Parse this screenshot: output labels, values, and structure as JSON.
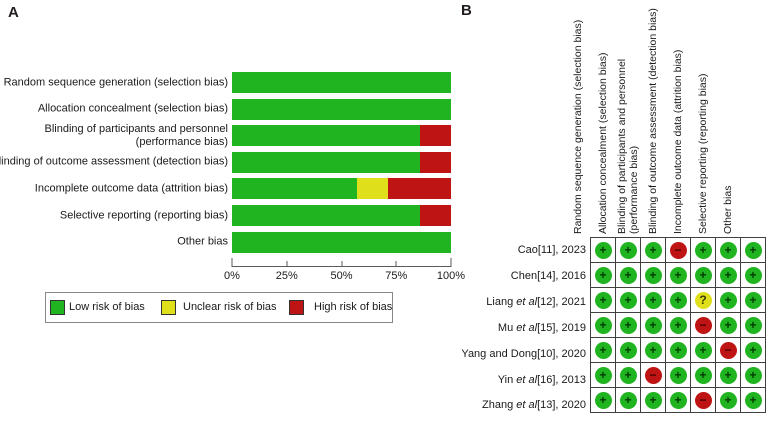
{
  "panel_a_label": "A",
  "panel_b_label": "B",
  "colors": {
    "low": "#21B421",
    "unclear": "#E0DF1C",
    "high": "#BE1414",
    "symbol": {
      "low": "#003B00",
      "unclear": "#3A3A00",
      "high": "#4A0000"
    }
  },
  "legend": {
    "items": [
      {
        "key": "low",
        "label": "Low risk of bias"
      },
      {
        "key": "unclear",
        "label": "Unclear risk of bias"
      },
      {
        "key": "high",
        "label": "High risk of bias"
      }
    ]
  },
  "chart_data": [
    {
      "id": "A",
      "type": "bar",
      "subtype": "horizontal_stacked_percent",
      "categories": [
        "Random sequence generation (selection bias)",
        "Allocation concealment (selection bias)",
        "Blinding of participants and personnel (performance bias)",
        "Blinding of outcome assessment (detection bias)",
        "Incomplete outcome data (attrition bias)",
        "Selective reporting (reporting bias)",
        "Other bias"
      ],
      "categories_lines": [
        [
          "Random sequence generation (selection bias)"
        ],
        [
          "Allocation concealment (selection bias)"
        ],
        [
          "Blinding of participants and personnel",
          "(performance bias)"
        ],
        [
          "Blinding of outcome assessment (detection bias)"
        ],
        [
          "Incomplete outcome data (attrition bias)"
        ],
        [
          "Selective reporting (reporting bias)"
        ],
        [
          "Other bias"
        ]
      ],
      "series": [
        {
          "name": "Low risk of bias",
          "key": "low",
          "values": [
            100,
            100,
            85.7,
            85.7,
            57.1,
            85.7,
            100
          ]
        },
        {
          "name": "Unclear risk of bias",
          "key": "unclear",
          "values": [
            0,
            0,
            0,
            0,
            14.3,
            0,
            0
          ]
        },
        {
          "name": "High risk of bias",
          "key": "high",
          "values": [
            0,
            0,
            14.3,
            14.3,
            28.6,
            14.3,
            0
          ]
        }
      ],
      "x_ticks": [
        "0%",
        "25%",
        "50%",
        "75%",
        "100%"
      ],
      "xlim": [
        0,
        100
      ],
      "legend_position": "bottom"
    },
    {
      "id": "B",
      "type": "table",
      "subtype": "traffic_light",
      "symbols": {
        "low": "+",
        "unclear": "?",
        "high": "−"
      },
      "rows": [
        {
          "study": "Cao[11], 2023",
          "study_pre": "Cao",
          "study_italic": "",
          "study_post": "[11], 2023",
          "judgments": [
            "low",
            "low",
            "low",
            "high",
            "low",
            "low",
            "low"
          ]
        },
        {
          "study": "Chen[14], 2016",
          "study_pre": "Chen",
          "study_italic": "",
          "study_post": "[14], 2016",
          "judgments": [
            "low",
            "low",
            "low",
            "low",
            "low",
            "low",
            "low"
          ]
        },
        {
          "study": "Liang et al[12], 2021",
          "study_pre": "Liang ",
          "study_italic": "et al",
          "study_post": "[12], 2021",
          "judgments": [
            "low",
            "low",
            "low",
            "low",
            "unclear",
            "low",
            "low"
          ]
        },
        {
          "study": "Mu et al[15], 2019",
          "study_pre": "Mu ",
          "study_italic": "et al",
          "study_post": "[15], 2019",
          "judgments": [
            "low",
            "low",
            "low",
            "low",
            "high",
            "low",
            "low"
          ]
        },
        {
          "study": "Yang and Dong[10], 2020",
          "study_pre": "Yang and Dong",
          "study_italic": "",
          "study_post": "[10], 2020",
          "judgments": [
            "low",
            "low",
            "low",
            "low",
            "low",
            "high",
            "low"
          ]
        },
        {
          "study": "Yin et al[16], 2013",
          "study_pre": "Yin ",
          "study_italic": "et al",
          "study_post": "[16], 2013",
          "judgments": [
            "low",
            "low",
            "high",
            "low",
            "low",
            "low",
            "low"
          ]
        },
        {
          "study": "Zhang et al[13], 2020",
          "study_pre": "Zhang ",
          "study_italic": "et al",
          "study_post": "[13], 2020",
          "judgments": [
            "low",
            "low",
            "low",
            "low",
            "high",
            "low",
            "low"
          ]
        }
      ]
    }
  ]
}
